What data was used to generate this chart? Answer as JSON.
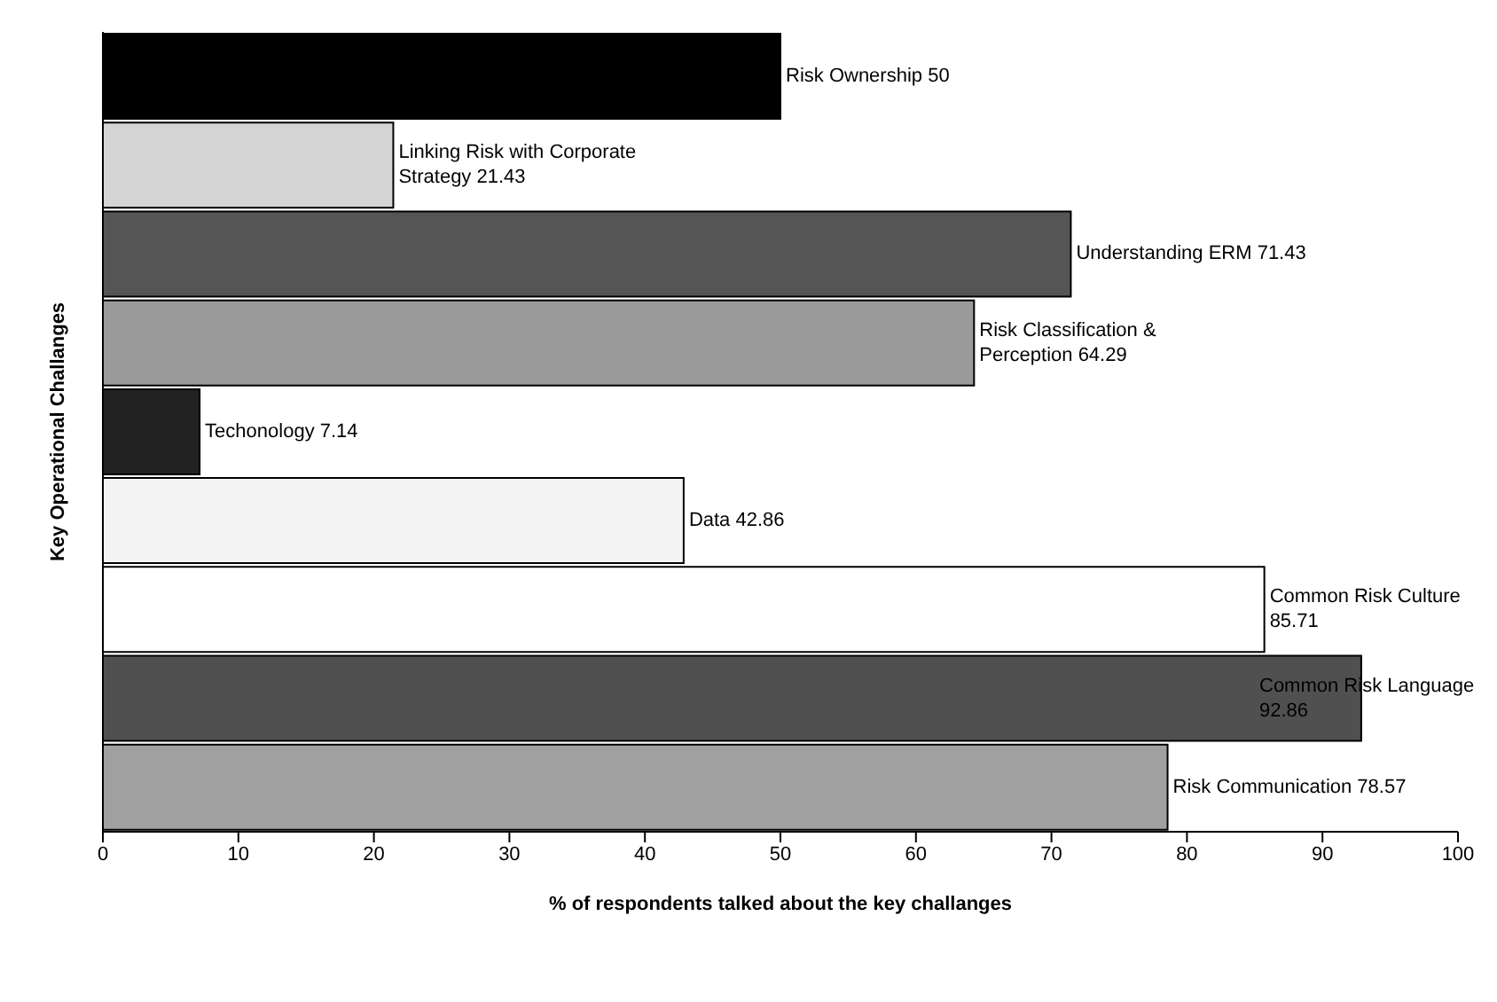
{
  "chart_data": {
    "type": "bar",
    "orientation": "horizontal",
    "xlabel": "% of respondents talked about the key challanges",
    "ylabel": "Key Operational Challanges",
    "categories": [
      null,
      null,
      null,
      null,
      null,
      null,
      null,
      null,
      null
    ],
    "values": [
      50,
      21.43,
      71.43,
      64.29,
      7.14,
      42.86,
      85.71,
      92.86,
      78.57
    ],
    "value_labels": [
      "Risk Ownership 50",
      "Linking Risk with Corporate Strategy 21.43",
      "Understanding ERM 71.43",
      "Risk Classification & Perception 64.29",
      "Techonology 7.14",
      "Data 42.86",
      "Common Risk Culture 85.71",
      "Common Risk Language 92.86",
      "Risk Communication 78.57"
    ],
    "colors": [
      "#000000",
      "#d4d4d4",
      "#555555",
      "#9a9a9a",
      "#222222",
      "#f4f4f4",
      "#ffffff",
      "#505050",
      "#a0a0a0"
    ],
    "xlim": [
      0,
      100
    ],
    "xticks": [
      0,
      10,
      20,
      30,
      40,
      50,
      60,
      70,
      80,
      90,
      100
    ],
    "tick_labels": "x",
    "grid": false,
    "legend": false
  }
}
